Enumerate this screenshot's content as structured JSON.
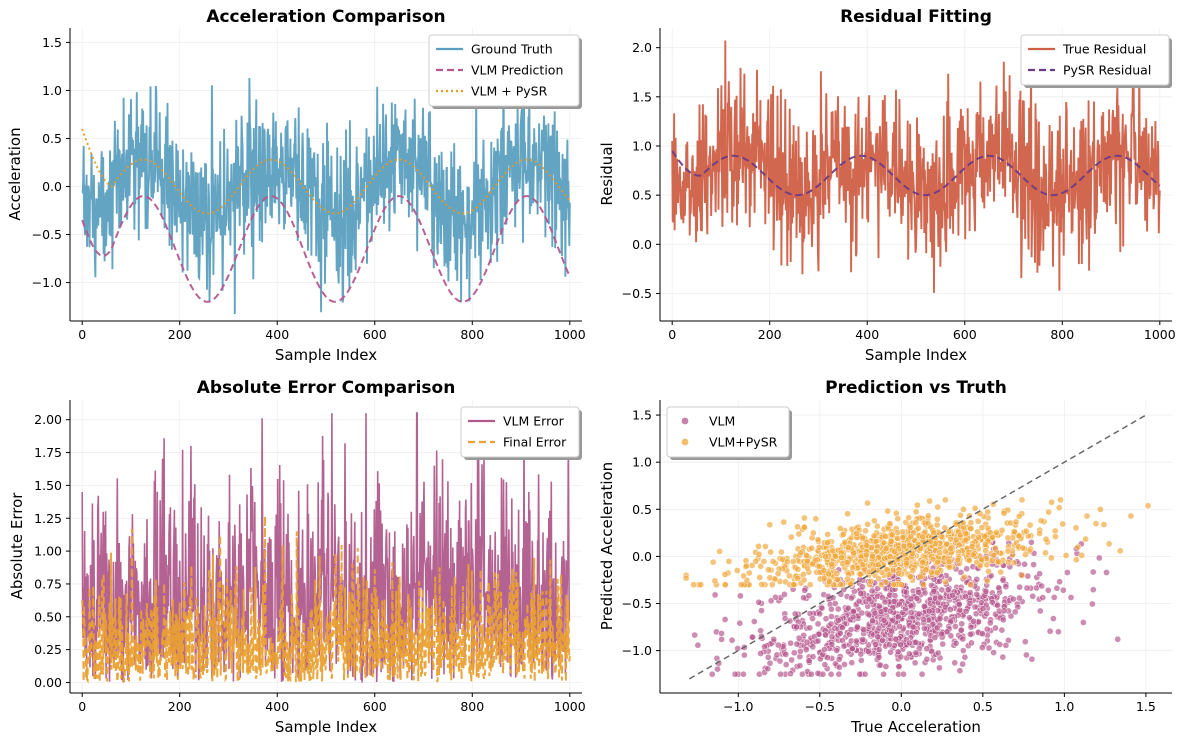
{
  "chart_data": [
    {
      "id": "accel",
      "type": "line",
      "title": "Acceleration Comparison",
      "xlabel": "Sample Index",
      "ylabel": "Acceleration",
      "xlim": [
        -25,
        1025
      ],
      "ylim": [
        -1.4,
        1.65
      ],
      "xticks": [
        0,
        200,
        400,
        600,
        800,
        1000
      ],
      "xtick_labels": [
        "0",
        "200",
        "400",
        "600",
        "800",
        "1000"
      ],
      "yticks": [
        -1.0,
        -0.5,
        0.0,
        0.5,
        1.0,
        1.5
      ],
      "ytick_labels": [
        "−1.0",
        "−0.5",
        "0.0",
        "0.5",
        "1.0",
        "1.5"
      ],
      "legend": "top-right",
      "series": [
        {
          "name": "Ground Truth",
          "style": "solid",
          "color": "#5a9fbf",
          "model": "noisy",
          "params": {
            "base": 0.0,
            "amp": 0.3,
            "noise": 0.38,
            "seed": 1
          }
        },
        {
          "name": "VLM Prediction",
          "style": "dashed",
          "color": "#b5578e",
          "model": "sine",
          "params": {
            "offset": -0.65,
            "amp": 0.55,
            "period": 262,
            "phase": -0.35,
            "decay_from": -0.35
          }
        },
        {
          "name": "VLM + PySR",
          "style": "dotted",
          "color": "#e69a1f",
          "model": "sine",
          "params": {
            "offset": 0.0,
            "amp": 0.28,
            "period": 262,
            "phase": 0.3,
            "decay_from": 0.6
          }
        }
      ]
    },
    {
      "id": "residual",
      "type": "line",
      "title": "Residual Fitting",
      "xlabel": "Sample Index",
      "ylabel": "Residual",
      "xlim": [
        -25,
        1025
      ],
      "ylim": [
        -0.78,
        2.2
      ],
      "xticks": [
        0,
        200,
        400,
        600,
        800,
        1000
      ],
      "xtick_labels": [
        "0",
        "200",
        "400",
        "600",
        "800",
        "1000"
      ],
      "yticks": [
        -0.5,
        0.0,
        0.5,
        1.0,
        1.5,
        2.0
      ],
      "ytick_labels": [
        "−0.5",
        "0.0",
        "0.5",
        "1.0",
        "1.5",
        "2.0"
      ],
      "legend": "top-right",
      "series": [
        {
          "name": "True Residual",
          "style": "solid",
          "color": "#cf5f45",
          "model": "noisy",
          "params": {
            "base": 0.72,
            "amp": 0.18,
            "noise": 0.38,
            "seed": 2
          }
        },
        {
          "name": "PySR Residual",
          "style": "dashed",
          "color": "#6e3a86",
          "model": "sine",
          "params": {
            "offset": 0.7,
            "amp": 0.2,
            "period": 262,
            "phase": 0.9,
            "decay_from": 0.95
          }
        }
      ]
    },
    {
      "id": "abserr",
      "type": "line",
      "title": "Absolute Error Comparison",
      "xlabel": "Sample Index",
      "ylabel": "Absolute Error",
      "xlim": [
        -25,
        1025
      ],
      "ylim": [
        -0.08,
        2.15
      ],
      "xticks": [
        0,
        200,
        400,
        600,
        800,
        1000
      ],
      "xtick_labels": [
        "0",
        "200",
        "400",
        "600",
        "800",
        "1000"
      ],
      "yticks": [
        0.0,
        0.25,
        0.5,
        0.75,
        1.0,
        1.25,
        1.5,
        1.75,
        2.0
      ],
      "ytick_labels": [
        "0.00",
        "0.25",
        "0.50",
        "0.75",
        "1.00",
        "1.25",
        "1.50",
        "1.75",
        "2.00"
      ],
      "legend": "top-right",
      "series": [
        {
          "name": "VLM Error",
          "style": "solid",
          "color": "#b05a8c",
          "model": "abs",
          "params": {
            "mean": 0.72,
            "spread": 0.4,
            "seed": 3
          }
        },
        {
          "name": "Final Error",
          "style": "dashed",
          "color": "#eaa033",
          "model": "abs",
          "params": {
            "mean": 0.3,
            "spread": 0.24,
            "seed": 4
          }
        }
      ]
    },
    {
      "id": "scatter",
      "type": "scatter",
      "title": "Prediction vs Truth",
      "xlabel": "True Acceleration",
      "ylabel": "Predicted Acceleration",
      "xlim": [
        -1.48,
        1.66
      ],
      "ylim": [
        -1.45,
        1.66
      ],
      "xticks": [
        -1.0,
        -0.5,
        0.0,
        0.5,
        1.0,
        1.5
      ],
      "xtick_labels": [
        "−1.0",
        "−0.5",
        "0.0",
        "0.5",
        "1.0",
        "1.5"
      ],
      "yticks": [
        -1.0,
        -0.5,
        0.0,
        0.5,
        1.0,
        1.5
      ],
      "ytick_labels": [
        "−1.0",
        "−0.5",
        "0.0",
        "0.5",
        "1.0",
        "1.5"
      ],
      "legend": "top-left",
      "reference_line": {
        "from": [
          -1.3,
          -1.3
        ],
        "to": [
          1.5,
          1.5
        ],
        "style": "dashed",
        "color": "#666666"
      },
      "series": [
        {
          "name": "VLM",
          "color": "#b5578e",
          "model": "cloud",
          "params": {
            "n": 1000,
            "x_mean": 0.0,
            "x_sd": 0.45,
            "y_center": -0.65,
            "y_slope": 0.3,
            "y_sd": 0.28,
            "y_min": -1.25,
            "y_max": 0.15,
            "seed": 5
          }
        },
        {
          "name": "VLM+PySR",
          "color": "#f0a63a",
          "model": "cloud",
          "params": {
            "n": 1000,
            "x_mean": 0.0,
            "x_sd": 0.45,
            "y_center": 0.05,
            "y_slope": 0.22,
            "y_sd": 0.17,
            "y_min": -0.3,
            "y_max": 0.6,
            "seed": 6
          }
        }
      ]
    }
  ]
}
